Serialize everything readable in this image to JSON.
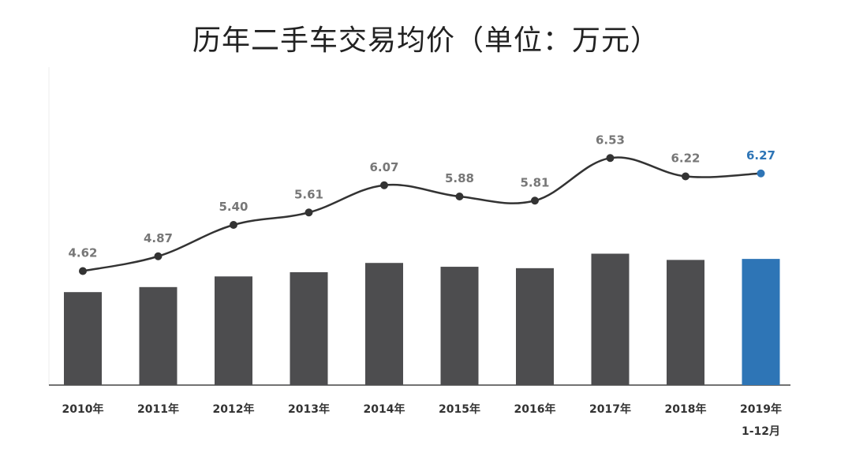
{
  "chart_data": {
    "type": "bar",
    "title": "历年二手车交易均价（单位：万元）",
    "categories": [
      "2010年",
      "2011年",
      "2012年",
      "2013年",
      "2014年",
      "2015年",
      "2016年",
      "2017年",
      "2018年",
      "2019年"
    ],
    "category_sublabels": [
      "",
      "",
      "",
      "",
      "",
      "",
      "",
      "",
      "",
      "1-12月"
    ],
    "values": [
      4.62,
      4.87,
      5.4,
      5.61,
      6.07,
      5.88,
      5.81,
      6.53,
      6.22,
      6.27
    ],
    "value_labels": [
      "4.62",
      "4.87",
      "5.40",
      "5.61",
      "6.07",
      "5.88",
      "5.81",
      "6.53",
      "6.22",
      "6.27"
    ],
    "overlay": "smoothed line with markers showing the same values",
    "highlight_index": 9,
    "colors": {
      "bar": "#4d4d4f",
      "highlight": "#2e75b6",
      "line": "#333333",
      "label": "#777777",
      "axis": "#444444"
    },
    "xlabel": "",
    "ylabel": "",
    "grid": false,
    "legend": "none"
  }
}
